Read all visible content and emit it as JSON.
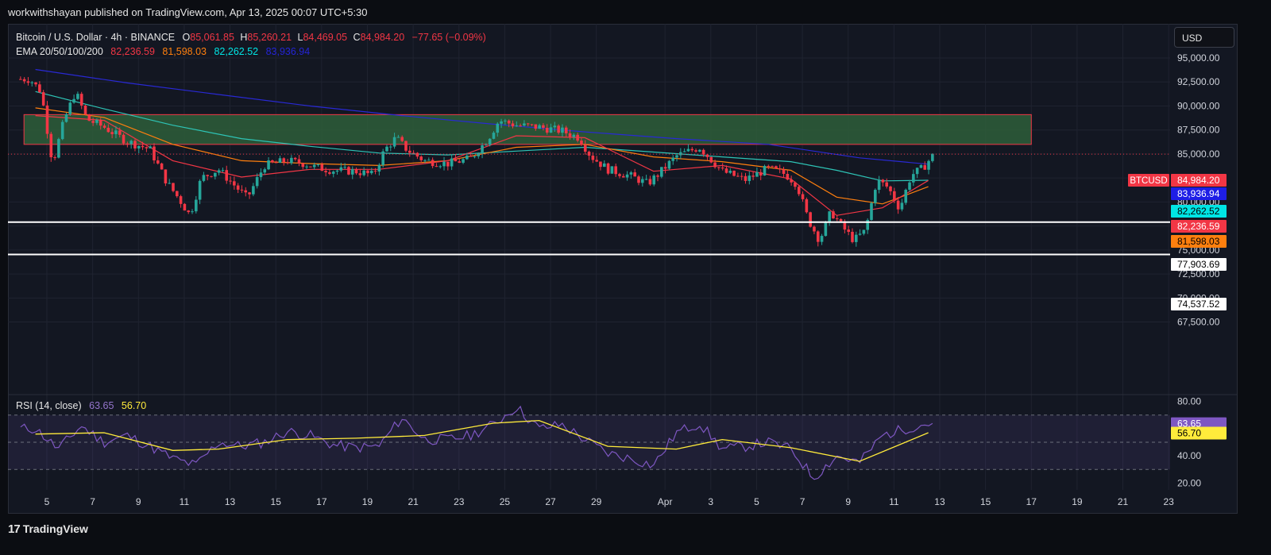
{
  "header": {
    "published_text": "workwithshayan published on TradingView.com, Apr 13, 2025 00:07 UTC+5:30"
  },
  "footer": {
    "logo_mark": "17",
    "logo_text": "TradingView"
  },
  "legend": {
    "symbol_title": "Bitcoin / U.S. Dollar · 4h · BINANCE",
    "open_label": "O",
    "open": "85,061.85",
    "high_label": "H",
    "high": "85,260.21",
    "low_label": "L",
    "low": "84,469.05",
    "close_label": "C",
    "close": "84,984.20",
    "change": "−77.65 (−0.09%)",
    "ema_label": "EMA 20/50/100/200",
    "ema20": "82,236.59",
    "ema50": "81,598.03",
    "ema100": "82,262.52",
    "ema200": "83,936.94",
    "rsi_label": "RSI (14, close)",
    "rsi_value": "63.65",
    "rsi_ma_value": "56.70"
  },
  "currency_button": "USD",
  "price_axis": {
    "ticks": [
      "95,000.00",
      "92,500.00",
      "90,000.00",
      "87,500.00",
      "85,000.00",
      "82,500.00",
      "80,000.00",
      "77,500.00",
      "75,000.00",
      "72,500.00",
      "70,000.00",
      "67,500.00"
    ],
    "tick_values": [
      95000,
      92500,
      90000,
      87500,
      85000,
      82500,
      80000,
      77500,
      75000,
      72500,
      70000,
      67500
    ],
    "badges": [
      {
        "label": "BTCUSD",
        "value": "84,984.20",
        "price": 84984.2,
        "color": "#f23645",
        "text_color": "#ffffff"
      },
      {
        "value": "83,936.94",
        "price": 83936.94,
        "color": "#1e1ee6",
        "text_color": "#ffffff"
      },
      {
        "value": "82,262.52",
        "price": 82262.52,
        "color": "#00e5e5",
        "text_color": "#000000"
      },
      {
        "value": "82,236.59",
        "price": 82236.59,
        "color": "#f23645",
        "text_color": "#ffffff"
      },
      {
        "value": "81,598.03",
        "price": 81598.03,
        "color": "#ff7f0e",
        "text_color": "#000000"
      },
      {
        "value": "77,903.69",
        "price": 77903.69,
        "color": "#ffffff",
        "text_color": "#000000"
      },
      {
        "value": "74,537.52",
        "price": 74537.52,
        "color": "#ffffff",
        "text_color": "#000000"
      }
    ]
  },
  "rsi_axis": {
    "ticks": [
      "80.00",
      "60.00",
      "40.00",
      "20.00"
    ],
    "tick_values": [
      80,
      60,
      40,
      20
    ],
    "badges": [
      {
        "value": "63.65",
        "level": 63.65,
        "color": "#7e57c2",
        "text_color": "#ffffff"
      },
      {
        "value": "56.70",
        "level": 56.7,
        "color": "#ffeb3b",
        "text_color": "#000000"
      }
    ]
  },
  "time_axis": {
    "labels": [
      "5",
      "7",
      "9",
      "11",
      "13",
      "15",
      "17",
      "19",
      "21",
      "23",
      "25",
      "27",
      "29",
      "Apr",
      "3",
      "5",
      "7",
      "9",
      "11",
      "13",
      "15",
      "17",
      "19",
      "21",
      "23"
    ],
    "days_from_mar5": [
      0,
      2,
      4,
      6,
      8,
      10,
      12,
      14,
      16,
      18,
      20,
      22,
      24,
      27,
      29,
      31,
      33,
      35,
      37,
      39,
      41,
      43,
      45,
      47,
      49
    ]
  },
  "colors": {
    "background": "#131722",
    "up": "#26a69a",
    "down": "#f23645",
    "ema20": "#f23645",
    "ema50": "#ff7f0e",
    "ema100": "#2ec4b6",
    "ema200": "#2929d4",
    "zone_fill": "#2e5e3a",
    "zone_border": "#f23645",
    "support": "#ffffff",
    "rsi_line": "#7e57c2",
    "rsi_ma": "#ffeb3b"
  },
  "chart_data": {
    "type": "candlestick",
    "symbol": "BTCUSD",
    "interval": "4h",
    "exchange": "BINANCE",
    "x_start": "2025-03-04",
    "x_end": "2025-03-24",
    "y_range": [
      67500,
      95000
    ],
    "grid": true,
    "zone": {
      "from": "2025-03-04",
      "to": "2025-04-17",
      "low": 86000,
      "high": 89100
    },
    "support_levels": [
      77903.69,
      74537.52
    ],
    "price_path": [
      [
        "2025-03-04",
        92800
      ],
      [
        "2025-03-04",
        91500
      ],
      [
        "2025-03-05",
        84000
      ],
      [
        "2025-03-05",
        88500
      ],
      [
        "2025-03-06",
        91500
      ],
      [
        "2025-03-06",
        88600
      ],
      [
        "2025-03-07",
        87800
      ],
      [
        "2025-03-08",
        86300
      ],
      [
        "2025-03-09",
        85500
      ],
      [
        "2025-03-10",
        82000
      ],
      [
        "2025-03-10",
        80400
      ],
      [
        "2025-03-11",
        78600
      ],
      [
        "2025-03-11",
        82500
      ],
      [
        "2025-03-12",
        83400
      ],
      [
        "2025-03-13",
        81600
      ],
      [
        "2025-03-13",
        80400
      ],
      [
        "2025-03-14",
        83800
      ],
      [
        "2025-03-15",
        84300
      ],
      [
        "2025-03-16",
        84000
      ],
      [
        "2025-03-16",
        83600
      ],
      [
        "2025-03-17",
        83300
      ],
      [
        "2025-03-18",
        83200
      ],
      [
        "2025-03-19",
        82800
      ],
      [
        "2025-03-19",
        85400
      ],
      [
        "2025-03-20",
        86700
      ],
      [
        "2025-03-20",
        85400
      ],
      [
        "2025-03-21",
        84300
      ],
      [
        "2025-03-22",
        84000
      ],
      [
        "2025-03-23",
        84500
      ],
      [
        "2025-03-24",
        86500
      ],
      [
        "2025-03-24",
        88500
      ],
      [
        "2025-03-25",
        88000
      ],
      [
        "2025-03-26",
        87800
      ],
      [
        "2025-03-27",
        87400
      ],
      [
        "2025-03-28",
        86700
      ],
      [
        "2025-03-28",
        84800
      ],
      [
        "2025-03-29",
        83400
      ],
      [
        "2025-03-30",
        82700
      ],
      [
        "2025-03-31",
        81900
      ],
      [
        "2025-03-31",
        83000
      ],
      [
        "2025-04-01",
        84800
      ],
      [
        "2025-04-02",
        85700
      ],
      [
        "2025-04-03",
        83200
      ],
      [
        "2025-04-04",
        82300
      ],
      [
        "2025-04-05",
        83500
      ],
      [
        "2025-04-06",
        82900
      ],
      [
        "2025-04-06",
        81900
      ],
      [
        "2025-04-07",
        78200
      ],
      [
        "2025-04-07",
        76000
      ],
      [
        "2025-04-08",
        79000
      ],
      [
        "2025-04-08",
        77400
      ],
      [
        "2025-04-09",
        76000
      ],
      [
        "2025-04-09",
        77000
      ],
      [
        "2025-04-10",
        82300
      ],
      [
        "2025-04-10",
        81500
      ],
      [
        "2025-04-11",
        79300
      ],
      [
        "2025-04-11",
        82800
      ],
      [
        "2025-04-12",
        83500
      ],
      [
        "2025-04-12",
        84984
      ]
    ],
    "ema200_path": [
      [
        "2025-03-04",
        93800
      ],
      [
        "2025-03-08",
        92400
      ],
      [
        "2025-03-12",
        91200
      ],
      [
        "2025-03-16",
        90000
      ],
      [
        "2025-03-20",
        89000
      ],
      [
        "2025-03-24",
        88100
      ],
      [
        "2025-03-28",
        87300
      ],
      [
        "2025-04-01",
        86600
      ],
      [
        "2025-04-05",
        86000
      ],
      [
        "2025-04-09",
        84600
      ],
      [
        "2025-04-12",
        83937
      ]
    ],
    "ema100_path": [
      [
        "2025-03-04",
        91500
      ],
      [
        "2025-03-07",
        89700
      ],
      [
        "2025-03-10",
        88000
      ],
      [
        "2025-03-13",
        86600
      ],
      [
        "2025-03-16",
        85800
      ],
      [
        "2025-03-19",
        85100
      ],
      [
        "2025-03-22",
        84900
      ],
      [
        "2025-03-25",
        85300
      ],
      [
        "2025-03-28",
        85700
      ],
      [
        "2025-03-31",
        85200
      ],
      [
        "2025-04-03",
        84700
      ],
      [
        "2025-04-06",
        84200
      ],
      [
        "2025-04-08",
        83300
      ],
      [
        "2025-04-10",
        82200
      ],
      [
        "2025-04-12",
        82263
      ]
    ],
    "ema50_path": [
      [
        "2025-03-04",
        89800
      ],
      [
        "2025-03-07",
        88800
      ],
      [
        "2025-03-10",
        86000
      ],
      [
        "2025-03-13",
        84300
      ],
      [
        "2025-03-16",
        84000
      ],
      [
        "2025-03-19",
        83800
      ],
      [
        "2025-03-22",
        84300
      ],
      [
        "2025-03-25",
        85700
      ],
      [
        "2025-03-28",
        86000
      ],
      [
        "2025-03-31",
        84700
      ],
      [
        "2025-04-03",
        84200
      ],
      [
        "2025-04-06",
        83300
      ],
      [
        "2025-04-08",
        80500
      ],
      [
        "2025-04-10",
        79800
      ],
      [
        "2025-04-12",
        81598
      ]
    ],
    "ema20_path": [
      [
        "2025-03-04",
        89000
      ],
      [
        "2025-03-07",
        88500
      ],
      [
        "2025-03-10",
        84300
      ],
      [
        "2025-03-13",
        82600
      ],
      [
        "2025-03-16",
        83400
      ],
      [
        "2025-03-19",
        83400
      ],
      [
        "2025-03-22",
        84300
      ],
      [
        "2025-03-25",
        86900
      ],
      [
        "2025-03-28",
        86700
      ],
      [
        "2025-03-31",
        83200
      ],
      [
        "2025-04-03",
        83800
      ],
      [
        "2025-04-06",
        82400
      ],
      [
        "2025-04-08",
        78600
      ],
      [
        "2025-04-10",
        79400
      ],
      [
        "2025-04-12",
        82237
      ]
    ],
    "rsi": {
      "range": [
        15,
        85
      ],
      "overbought": 70,
      "oversold": 30,
      "mid": 50,
      "line": [
        [
          "2025-03-04",
          60
        ],
        [
          "2025-03-05",
          45
        ],
        [
          "2025-03-06",
          62
        ],
        [
          "2025-03-07",
          50
        ],
        [
          "2025-03-08",
          55
        ],
        [
          "2025-03-09",
          47
        ],
        [
          "2025-03-10",
          38
        ],
        [
          "2025-03-11",
          33
        ],
        [
          "2025-03-12",
          50
        ],
        [
          "2025-03-13",
          47
        ],
        [
          "2025-03-14",
          50
        ],
        [
          "2025-03-15",
          58
        ],
        [
          "2025-03-16",
          55
        ],
        [
          "2025-03-17",
          48
        ],
        [
          "2025-03-18",
          46
        ],
        [
          "2025-03-19",
          47
        ],
        [
          "2025-03-20",
          68
        ],
        [
          "2025-03-21",
          52
        ],
        [
          "2025-03-22",
          52
        ],
        [
          "2025-03-23",
          55
        ],
        [
          "2025-03-24",
          63
        ],
        [
          "2025-03-25",
          76
        ],
        [
          "2025-03-26",
          60
        ],
        [
          "2025-03-27",
          63
        ],
        [
          "2025-03-28",
          52
        ],
        [
          "2025-03-29",
          42
        ],
        [
          "2025-03-30",
          38
        ],
        [
          "2025-03-31",
          33
        ],
        [
          "2025-04-01",
          57
        ],
        [
          "2025-04-02",
          64
        ],
        [
          "2025-04-03",
          45
        ],
        [
          "2025-04-04",
          47
        ],
        [
          "2025-04-05",
          50
        ],
        [
          "2025-04-06",
          45
        ],
        [
          "2025-04-07",
          24
        ],
        [
          "2025-04-08",
          40
        ],
        [
          "2025-04-09",
          35
        ],
        [
          "2025-04-10",
          55
        ],
        [
          "2025-04-11",
          60
        ],
        [
          "2025-04-12",
          64
        ]
      ],
      "ma": [
        [
          "2025-03-04",
          56
        ],
        [
          "2025-03-07",
          57
        ],
        [
          "2025-03-10",
          44
        ],
        [
          "2025-03-12",
          45
        ],
        [
          "2025-03-15",
          52
        ],
        [
          "2025-03-18",
          53
        ],
        [
          "2025-03-21",
          55
        ],
        [
          "2025-03-24",
          64
        ],
        [
          "2025-03-26",
          66
        ],
        [
          "2025-03-29",
          47
        ],
        [
          "2025-04-01",
          45
        ],
        [
          "2025-04-03",
          52
        ],
        [
          "2025-04-06",
          46
        ],
        [
          "2025-04-09",
          36
        ],
        [
          "2025-04-11",
          50
        ],
        [
          "2025-04-12",
          57
        ]
      ]
    }
  }
}
